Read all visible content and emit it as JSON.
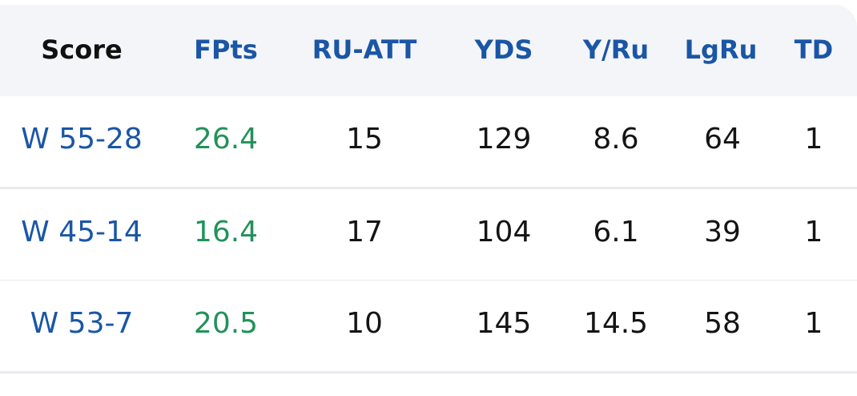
{
  "table": {
    "headers": [
      "Score",
      "FPts",
      "RU-ATT",
      "YDS",
      "Y/Ru",
      "LgRu",
      "TD"
    ],
    "rows": [
      [
        "W 55-28",
        "26.4",
        "15",
        "129",
        "8.6",
        "64",
        "1"
      ],
      [
        "W 45-14",
        "16.4",
        "17",
        "104",
        "6.1",
        "39",
        "1"
      ],
      [
        "W 53-7",
        "20.5",
        "10",
        "145",
        "14.5",
        "58",
        "1"
      ]
    ]
  },
  "colors": {
    "header_background": "#f4f5f8",
    "header_score_text": "#111111",
    "header_text": "#1a56a6",
    "score_link": "#1a56a6",
    "fantasy_points": "#22925a",
    "cell_text": "#141414",
    "row_divider": "#e9eaee"
  }
}
